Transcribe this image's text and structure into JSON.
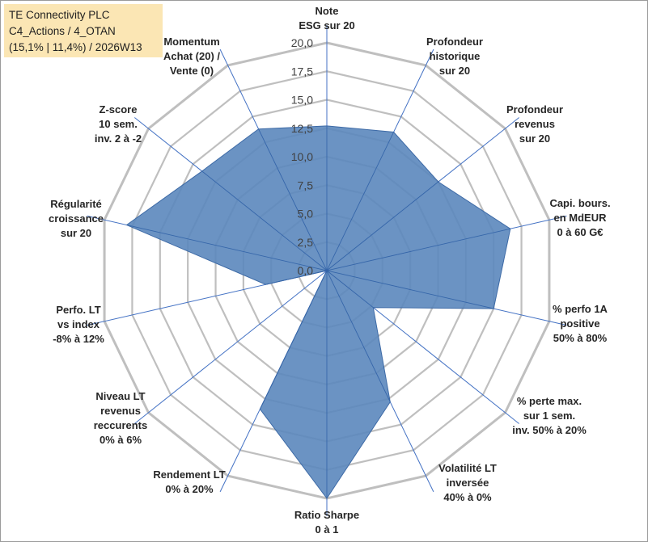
{
  "title_box": {
    "line1": "TE Connectivity PLC",
    "line2": "C4_Actions / 4_OTAN",
    "line3": "(15,1% | 11,4%) / 2026W13"
  },
  "colors": {
    "fill": "#5b87bd",
    "stroke": "#3d6aa6",
    "grid": "#bfbfbf",
    "spoke": "#4472c4",
    "title_bg": "#fbe6b4"
  },
  "chart_data": {
    "type": "radar",
    "title": "TE Connectivity PLC C4_Actions / 4_OTAN (15,1% | 11,4%) / 2026W13",
    "rlim": [
      0,
      20
    ],
    "tick_values": [
      0,
      2.5,
      5,
      7.5,
      10,
      12.5,
      15,
      17.5,
      20
    ],
    "tick_labels": [
      "0,0",
      "2,5",
      "5,0",
      "7,5",
      "10,0",
      "12,5",
      "15,0",
      "17,5",
      "20,0"
    ],
    "categories": [
      [
        "Note",
        "ESG sur 20"
      ],
      [
        "Profondeur",
        "historique",
        "sur 20"
      ],
      [
        "Profondeur",
        "revenus",
        "sur 20"
      ],
      [
        "Capi. bours.",
        "en MdEUR",
        "0 à 60 G€"
      ],
      [
        "% perfo 1A",
        "positive",
        "50% à 80%"
      ],
      [
        "% perte max.",
        "sur 1 sem.",
        "inv. 50% à 20%"
      ],
      [
        "Volatilité LT",
        "inversée",
        "40% à 0%"
      ],
      [
        "Ratio Sharpe",
        "0 à 1"
      ],
      [
        "Rendement LT",
        "0% à 20%"
      ],
      [
        "Niveau LT",
        "revenus",
        "reccurents",
        "0% à 6%"
      ],
      [
        "Perfo. LT",
        "vs index",
        "-8% à 12%"
      ],
      [
        "Régularité",
        "croissance",
        "sur 20"
      ],
      [
        "Z-score",
        "10 sem.",
        "inv. 2 à -2"
      ],
      [
        "Momentum",
        "Achat (20) /",
        "Vente (0)"
      ]
    ],
    "series": [
      {
        "name": "TE Connectivity PLC",
        "values": [
          12.7,
          13.5,
          12.5,
          16.5,
          15.0,
          5.2,
          12.8,
          20.0,
          13.5,
          0.0,
          5.5,
          18.0,
          14.0,
          13.8
        ]
      }
    ]
  }
}
